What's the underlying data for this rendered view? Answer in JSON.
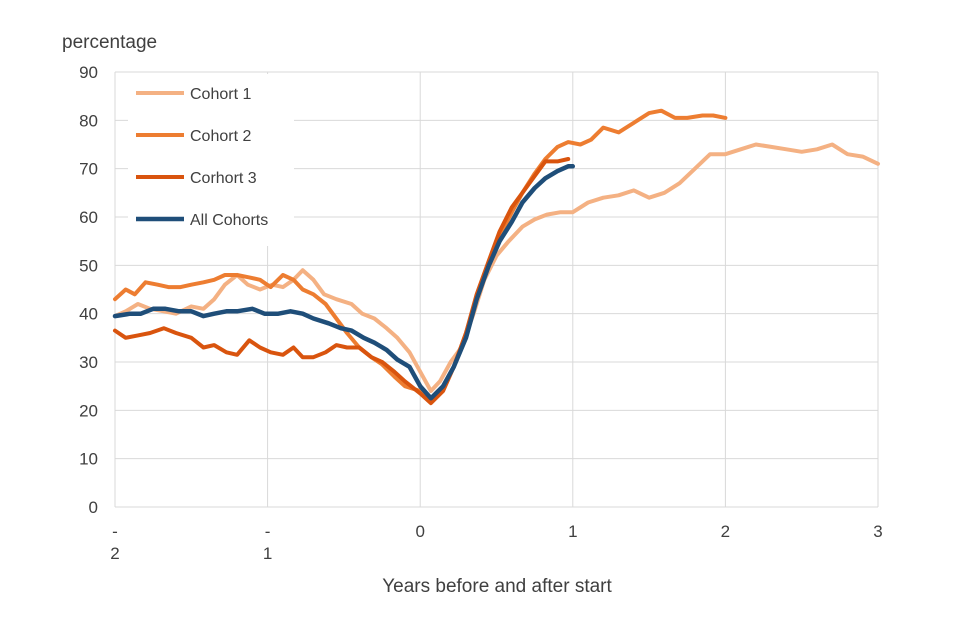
{
  "chart_data": {
    "type": "line",
    "ylabel": "percentage",
    "xlabel": "Years before and after start",
    "xlim": [
      -2,
      3
    ],
    "ylim": [
      0,
      90
    ],
    "y_ticks": [
      "0",
      "10",
      "20",
      "30",
      "40",
      "50",
      "60",
      "70",
      "80",
      "90"
    ],
    "x_ticks": [
      {
        "value": -2,
        "line1": "-",
        "line2": "2"
      },
      {
        "value": -1,
        "line1": "-",
        "line2": "1"
      },
      {
        "value": 0,
        "line1": "0",
        "line2": ""
      },
      {
        "value": 1,
        "line1": "1",
        "line2": ""
      },
      {
        "value": 2,
        "line1": "2",
        "line2": ""
      },
      {
        "value": 3,
        "line1": "3",
        "line2": ""
      }
    ],
    "grid": {
      "horizontal": true,
      "vertical": true
    },
    "legend": "top-left",
    "series": [
      {
        "name": "Cohort 1",
        "color": "#F4B183",
        "points": [
          [
            -2.0,
            39.5
          ],
          [
            -1.93,
            40.5
          ],
          [
            -1.85,
            42
          ],
          [
            -1.77,
            41
          ],
          [
            -1.68,
            40.5
          ],
          [
            -1.6,
            40
          ],
          [
            -1.5,
            41.5
          ],
          [
            -1.42,
            41
          ],
          [
            -1.35,
            43
          ],
          [
            -1.28,
            46
          ],
          [
            -1.2,
            48
          ],
          [
            -1.13,
            46
          ],
          [
            -1.05,
            45
          ],
          [
            -0.97,
            46
          ],
          [
            -0.9,
            45.5
          ],
          [
            -0.83,
            47
          ],
          [
            -0.77,
            49
          ],
          [
            -0.7,
            47
          ],
          [
            -0.63,
            44
          ],
          [
            -0.55,
            43
          ],
          [
            -0.45,
            42
          ],
          [
            -0.38,
            40
          ],
          [
            -0.3,
            39
          ],
          [
            -0.22,
            37
          ],
          [
            -0.15,
            35
          ],
          [
            -0.07,
            32
          ],
          [
            0.0,
            28
          ],
          [
            0.07,
            24
          ],
          [
            0.13,
            26
          ],
          [
            0.2,
            30
          ],
          [
            0.27,
            33
          ],
          [
            0.35,
            40
          ],
          [
            0.42,
            47
          ],
          [
            0.5,
            52
          ],
          [
            0.58,
            55
          ],
          [
            0.67,
            58
          ],
          [
            0.75,
            59.5
          ],
          [
            0.83,
            60.5
          ],
          [
            0.92,
            61
          ],
          [
            1.0,
            61
          ],
          [
            1.1,
            63
          ],
          [
            1.2,
            64
          ],
          [
            1.3,
            64.5
          ],
          [
            1.4,
            65.5
          ],
          [
            1.5,
            64
          ],
          [
            1.6,
            65
          ],
          [
            1.7,
            67
          ],
          [
            1.8,
            70
          ],
          [
            1.9,
            73
          ],
          [
            2.0,
            73
          ],
          [
            2.1,
            74
          ],
          [
            2.2,
            75
          ],
          [
            2.3,
            74.5
          ],
          [
            2.4,
            74
          ],
          [
            2.5,
            73.5
          ],
          [
            2.6,
            74
          ],
          [
            2.7,
            75
          ],
          [
            2.8,
            73
          ],
          [
            2.9,
            72.5
          ],
          [
            3.0,
            71
          ]
        ]
      },
      {
        "name": "Cohort 2",
        "color": "#ED7D31",
        "points": [
          [
            -2.0,
            43
          ],
          [
            -1.93,
            45
          ],
          [
            -1.87,
            44
          ],
          [
            -1.8,
            46.5
          ],
          [
            -1.72,
            46
          ],
          [
            -1.65,
            45.5
          ],
          [
            -1.57,
            45.5
          ],
          [
            -1.5,
            46
          ],
          [
            -1.42,
            46.5
          ],
          [
            -1.35,
            47
          ],
          [
            -1.28,
            48
          ],
          [
            -1.2,
            48
          ],
          [
            -1.12,
            47.5
          ],
          [
            -1.05,
            47
          ],
          [
            -0.98,
            45.5
          ],
          [
            -0.9,
            48
          ],
          [
            -0.83,
            47
          ],
          [
            -0.77,
            45
          ],
          [
            -0.7,
            44
          ],
          [
            -0.62,
            42
          ],
          [
            -0.55,
            39
          ],
          [
            -0.48,
            36
          ],
          [
            -0.4,
            33
          ],
          [
            -0.32,
            31
          ],
          [
            -0.25,
            29.5
          ],
          [
            -0.17,
            27
          ],
          [
            -0.1,
            25
          ],
          [
            0.0,
            24
          ],
          [
            0.07,
            22
          ],
          [
            0.15,
            25
          ],
          [
            0.22,
            29
          ],
          [
            0.3,
            36
          ],
          [
            0.37,
            43
          ],
          [
            0.45,
            50
          ],
          [
            0.52,
            56
          ],
          [
            0.6,
            61
          ],
          [
            0.67,
            65
          ],
          [
            0.75,
            69
          ],
          [
            0.82,
            72
          ],
          [
            0.9,
            74.5
          ],
          [
            0.97,
            75.5
          ],
          [
            1.05,
            75
          ],
          [
            1.12,
            76
          ],
          [
            1.2,
            78.5
          ],
          [
            1.3,
            77.5
          ],
          [
            1.4,
            79.5
          ],
          [
            1.5,
            81.5
          ],
          [
            1.58,
            82
          ],
          [
            1.67,
            80.5
          ],
          [
            1.75,
            80.5
          ],
          [
            1.85,
            81
          ],
          [
            1.92,
            81
          ],
          [
            2.0,
            80.5
          ]
        ]
      },
      {
        "name": "Corhort 3",
        "color": "#D9540E",
        "points": [
          [
            -2.0,
            36.5
          ],
          [
            -1.93,
            35
          ],
          [
            -1.85,
            35.5
          ],
          [
            -1.77,
            36
          ],
          [
            -1.68,
            37
          ],
          [
            -1.6,
            36
          ],
          [
            -1.5,
            35
          ],
          [
            -1.42,
            33
          ],
          [
            -1.35,
            33.5
          ],
          [
            -1.27,
            32
          ],
          [
            -1.2,
            31.5
          ],
          [
            -1.12,
            34.5
          ],
          [
            -1.05,
            33
          ],
          [
            -0.98,
            32
          ],
          [
            -0.9,
            31.5
          ],
          [
            -0.83,
            33
          ],
          [
            -0.77,
            31
          ],
          [
            -0.7,
            31
          ],
          [
            -0.62,
            32
          ],
          [
            -0.55,
            33.5
          ],
          [
            -0.48,
            33
          ],
          [
            -0.4,
            33
          ],
          [
            -0.32,
            31
          ],
          [
            -0.25,
            30
          ],
          [
            -0.17,
            28
          ],
          [
            -0.1,
            26
          ],
          [
            0.0,
            23.5
          ],
          [
            0.07,
            21.5
          ],
          [
            0.15,
            24
          ],
          [
            0.22,
            29
          ],
          [
            0.3,
            36
          ],
          [
            0.37,
            44
          ],
          [
            0.45,
            51
          ],
          [
            0.52,
            57
          ],
          [
            0.6,
            62
          ],
          [
            0.67,
            65
          ],
          [
            0.75,
            68.5
          ],
          [
            0.82,
            71.5
          ],
          [
            0.9,
            71.5
          ],
          [
            0.97,
            72
          ]
        ]
      },
      {
        "name": "All Cohorts",
        "color": "#1F4E79",
        "points": [
          [
            -2.0,
            39.5
          ],
          [
            -1.9,
            40
          ],
          [
            -1.83,
            40
          ],
          [
            -1.75,
            41
          ],
          [
            -1.67,
            41
          ],
          [
            -1.58,
            40.5
          ],
          [
            -1.5,
            40.5
          ],
          [
            -1.42,
            39.5
          ],
          [
            -1.35,
            40
          ],
          [
            -1.27,
            40.5
          ],
          [
            -1.2,
            40.5
          ],
          [
            -1.1,
            41
          ],
          [
            -1.02,
            40
          ],
          [
            -0.93,
            40
          ],
          [
            -0.85,
            40.5
          ],
          [
            -0.77,
            40
          ],
          [
            -0.7,
            39
          ],
          [
            -0.6,
            38
          ],
          [
            -0.52,
            37
          ],
          [
            -0.45,
            36.5
          ],
          [
            -0.37,
            35
          ],
          [
            -0.3,
            34
          ],
          [
            -0.22,
            32.5
          ],
          [
            -0.15,
            30.5
          ],
          [
            -0.07,
            29
          ],
          [
            0.0,
            25
          ],
          [
            0.07,
            22.5
          ],
          [
            0.15,
            25
          ],
          [
            0.22,
            29
          ],
          [
            0.3,
            35
          ],
          [
            0.37,
            43
          ],
          [
            0.45,
            50
          ],
          [
            0.52,
            55
          ],
          [
            0.6,
            59
          ],
          [
            0.67,
            63
          ],
          [
            0.75,
            66
          ],
          [
            0.82,
            68
          ],
          [
            0.9,
            69.5
          ],
          [
            0.97,
            70.5
          ],
          [
            1.0,
            70.5
          ]
        ]
      }
    ]
  }
}
